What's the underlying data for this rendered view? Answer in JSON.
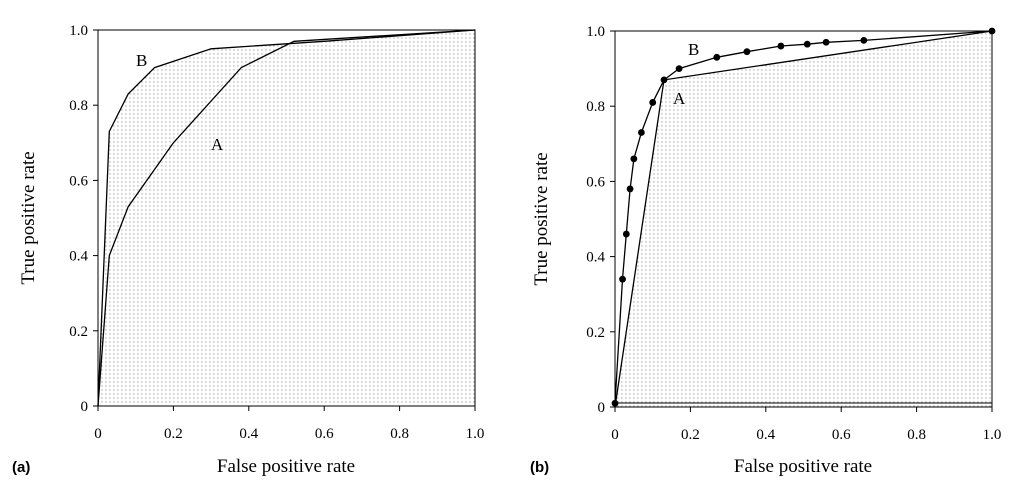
{
  "chart_data": [
    {
      "type": "line",
      "panel_label": "(a)",
      "xlabel": "False positive rate",
      "ylabel": "True positive rate",
      "xlim": [
        0,
        1
      ],
      "ylim": [
        0,
        1
      ],
      "x_ticks": [
        "0",
        "0.2",
        "0.4",
        "0.6",
        "0.8",
        "1.0"
      ],
      "y_ticks": [
        "0",
        "0.2",
        "0.4",
        "0.6",
        "0.8",
        "1.0"
      ],
      "series": [
        {
          "name": "A",
          "x": [
            0,
            0.03,
            0.08,
            0.2,
            0.38,
            0.52,
            1.0
          ],
          "y": [
            0,
            0.4,
            0.53,
            0.7,
            0.9,
            0.97,
            1.0
          ]
        },
        {
          "name": "B",
          "x": [
            0,
            0.03,
            0.08,
            0.15,
            0.3,
            0.6,
            1.0
          ],
          "y": [
            0,
            0.73,
            0.83,
            0.9,
            0.95,
            0.97,
            1.0
          ]
        }
      ],
      "shaded_region": "area under curve B (dotted)"
    },
    {
      "type": "line",
      "panel_label": "(b)",
      "xlabel": "False positive rate",
      "ylabel": "True positive rate",
      "xlim": [
        0,
        1
      ],
      "ylim": [
        0,
        1
      ],
      "x_ticks": [
        "0",
        "0.2",
        "0.4",
        "0.6",
        "0.8",
        "1.0"
      ],
      "y_ticks": [
        "0",
        "0.2",
        "0.4",
        "0.6",
        "0.8",
        "1.0"
      ],
      "series": [
        {
          "name": "A",
          "x": [
            0,
            0.13,
            1.0
          ],
          "y": [
            0,
            0.87,
            1.0
          ]
        },
        {
          "name": "B",
          "x": [
            0,
            0.02,
            0.03,
            0.04,
            0.05,
            0.07,
            0.1,
            0.13,
            0.17,
            0.27,
            0.35,
            0.44,
            0.51,
            0.56,
            0.66,
            1.0
          ],
          "y": [
            0.01,
            0.34,
            0.46,
            0.58,
            0.66,
            0.73,
            0.81,
            0.87,
            0.9,
            0.93,
            0.945,
            0.96,
            0.965,
            0.97,
            0.975,
            1.0
          ],
          "markers": true
        }
      ],
      "shaded_region": "area under curve A (dotted)"
    }
  ]
}
